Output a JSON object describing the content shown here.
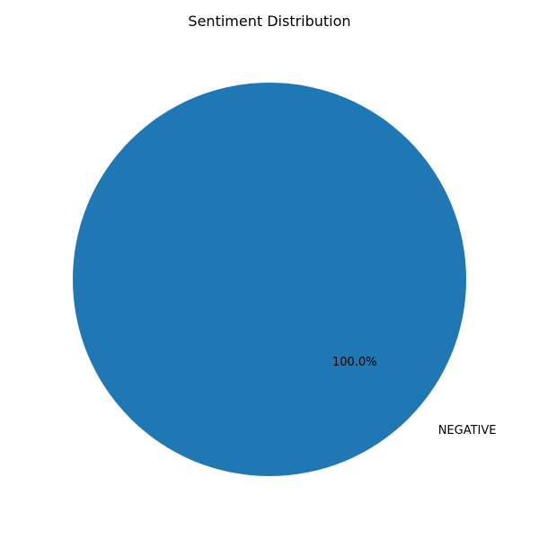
{
  "chart_data": {
    "type": "pie",
    "title": "Sentiment Distribution",
    "slices": [
      {
        "label": "NEGATIVE",
        "value": 100.0,
        "percent_label": "100.0%",
        "color": "#1f77b4"
      }
    ]
  }
}
